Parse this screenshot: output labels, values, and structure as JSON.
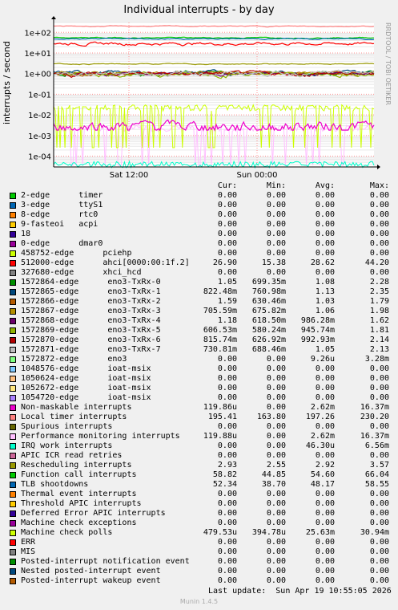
{
  "chart_data": {
    "type": "line",
    "title": "Individual interrupts - by day",
    "ylabel": "interrupts / second",
    "yscale": "log",
    "ylim": [
      3e-05,
      300
    ],
    "y_ticks": [
      "1e+02",
      "1e+01",
      "1e+00",
      "1e-01",
      "1e-02",
      "1e-03",
      "1e-04"
    ],
    "x_ticks": [
      "Sat 12:00",
      "Sun 00:00"
    ],
    "grid": true,
    "side_label": "RRDTOOL / TOBI OETIKER",
    "headers": [
      "Cur:",
      "Min:",
      "Avg:",
      "Max:"
    ],
    "series": [
      {
        "name": "2-edge      timer",
        "color": "#00cc00",
        "cur": "0.00",
        "min": "0.00",
        "avg": "0.00",
        "max": "0.00"
      },
      {
        "name": "3-edge      ttyS1",
        "color": "#0066b3",
        "cur": "0.00",
        "min": "0.00",
        "avg": "0.00",
        "max": "0.00"
      },
      {
        "name": "8-edge      rtc0",
        "color": "#ff8000",
        "cur": "0.00",
        "min": "0.00",
        "avg": "0.00",
        "max": "0.00"
      },
      {
        "name": "9-fasteoi   acpi",
        "color": "#ffcc00",
        "cur": "0.00",
        "min": "0.00",
        "avg": "0.00",
        "max": "0.00"
      },
      {
        "name": "18",
        "color": "#330099",
        "cur": "0.00",
        "min": "0.00",
        "avg": "0.00",
        "max": "0.00"
      },
      {
        "name": "0-edge      dmar0",
        "color": "#990099",
        "cur": "0.00",
        "min": "0.00",
        "avg": "0.00",
        "max": "0.00"
      },
      {
        "name": "458752-edge      pciehp",
        "color": "#ccff00",
        "cur": "0.00",
        "min": "0.00",
        "avg": "0.00",
        "max": "0.00"
      },
      {
        "name": "512000-edge      ahci[0000:00:1f.2]",
        "color": "#ff0000",
        "cur": "26.90",
        "min": "15.38",
        "avg": "28.62",
        "max": "44.20"
      },
      {
        "name": "327680-edge      xhci_hcd",
        "color": "#808080",
        "cur": "0.00",
        "min": "0.00",
        "avg": "0.00",
        "max": "0.00"
      },
      {
        "name": "1572864-edge      eno3-TxRx-0",
        "color": "#008f00",
        "cur": "1.05",
        "min": "699.35m",
        "avg": "1.08",
        "max": "2.28"
      },
      {
        "name": "1572865-edge      eno3-TxRx-1",
        "color": "#00487d",
        "cur": "822.48m",
        "min": "760.98m",
        "avg": "1.13",
        "max": "2.35"
      },
      {
        "name": "1572866-edge      eno3-TxRx-2",
        "color": "#b35a00",
        "cur": "1.59",
        "min": "630.46m",
        "avg": "1.03",
        "max": "1.79"
      },
      {
        "name": "1572867-edge      eno3-TxRx-3",
        "color": "#b38f00",
        "cur": "705.59m",
        "min": "675.82m",
        "avg": "1.06",
        "max": "1.98"
      },
      {
        "name": "1572868-edge      eno3-TxRx-4",
        "color": "#6b006b",
        "cur": "1.18",
        "min": "618.50m",
        "avg": "986.28m",
        "max": "1.62"
      },
      {
        "name": "1572869-edge      eno3-TxRx-5",
        "color": "#8fb300",
        "cur": "606.53m",
        "min": "580.24m",
        "avg": "945.74m",
        "max": "1.81"
      },
      {
        "name": "1572870-edge      eno3-TxRx-6",
        "color": "#b30000",
        "cur": "815.74m",
        "min": "626.92m",
        "avg": "992.93m",
        "max": "2.14"
      },
      {
        "name": "1572871-edge      eno3-TxRx-7",
        "color": "#bebebe",
        "cur": "730.81m",
        "min": "688.46m",
        "avg": "1.05",
        "max": "2.13"
      },
      {
        "name": "1572872-edge      eno3",
        "color": "#80ff80",
        "cur": "0.00",
        "min": "0.00",
        "avg": "9.26u",
        "max": "3.28m"
      },
      {
        "name": "1048576-edge      ioat-msix",
        "color": "#80c9ff",
        "cur": "0.00",
        "min": "0.00",
        "avg": "0.00",
        "max": "0.00"
      },
      {
        "name": "1050624-edge      ioat-msix",
        "color": "#ffc080",
        "cur": "0.00",
        "min": "0.00",
        "avg": "0.00",
        "max": "0.00"
      },
      {
        "name": "1052672-edge      ioat-msix",
        "color": "#ffe680",
        "cur": "0.00",
        "min": "0.00",
        "avg": "0.00",
        "max": "0.00"
      },
      {
        "name": "1054720-edge      ioat-msix",
        "color": "#aa80ff",
        "cur": "0.00",
        "min": "0.00",
        "avg": "0.00",
        "max": "0.00"
      },
      {
        "name": "Non-maskable interrupts",
        "color": "#ee00cc",
        "cur": "119.86u",
        "min": "0.00",
        "avg": "2.62m",
        "max": "16.37m"
      },
      {
        "name": "Local timer interrupts",
        "color": "#ff8080",
        "cur": "195.41",
        "min": "163.80",
        "avg": "197.26",
        "max": "230.20"
      },
      {
        "name": "Spurious interrupts",
        "color": "#666600",
        "cur": "0.00",
        "min": "0.00",
        "avg": "0.00",
        "max": "0.00"
      },
      {
        "name": "Performance monitoring interrupts",
        "color": "#ffbfff",
        "cur": "119.88u",
        "min": "0.00",
        "avg": "2.62m",
        "max": "16.37m"
      },
      {
        "name": "IRQ work interrupts",
        "color": "#00ffcc",
        "cur": "0.00",
        "min": "0.00",
        "avg": "46.30u",
        "max": "6.56m"
      },
      {
        "name": "APIC ICR read retries",
        "color": "#cc6699",
        "cur": "0.00",
        "min": "0.00",
        "avg": "0.00",
        "max": "0.00"
      },
      {
        "name": "Rescheduling interrupts",
        "color": "#999900",
        "cur": "2.93",
        "min": "2.55",
        "avg": "2.92",
        "max": "3.57"
      },
      {
        "name": "Function call interrupts",
        "color": "#00cc00",
        "cur": "58.82",
        "min": "44.85",
        "avg": "54.60",
        "max": "66.04"
      },
      {
        "name": "TLB shootdowns",
        "color": "#0066b3",
        "cur": "52.34",
        "min": "38.70",
        "avg": "48.17",
        "max": "58.55"
      },
      {
        "name": "Thermal event interrupts",
        "color": "#ff8000",
        "cur": "0.00",
        "min": "0.00",
        "avg": "0.00",
        "max": "0.00"
      },
      {
        "name": "Threshold APIC interrupts",
        "color": "#ffcc00",
        "cur": "0.00",
        "min": "0.00",
        "avg": "0.00",
        "max": "0.00"
      },
      {
        "name": "Deferred Error APIC interrupts",
        "color": "#330099",
        "cur": "0.00",
        "min": "0.00",
        "avg": "0.00",
        "max": "0.00"
      },
      {
        "name": "Machine check exceptions",
        "color": "#990099",
        "cur": "0.00",
        "min": "0.00",
        "avg": "0.00",
        "max": "0.00"
      },
      {
        "name": "Machine check polls",
        "color": "#ccff00",
        "cur": "479.53u",
        "min": "394.78u",
        "avg": "25.63m",
        "max": "30.94m"
      },
      {
        "name": "ERR",
        "color": "#ff0000",
        "cur": "0.00",
        "min": "0.00",
        "avg": "0.00",
        "max": "0.00"
      },
      {
        "name": "MIS",
        "color": "#808080",
        "cur": "0.00",
        "min": "0.00",
        "avg": "0.00",
        "max": "0.00"
      },
      {
        "name": "Posted-interrupt notification event",
        "color": "#008f00",
        "cur": "0.00",
        "min": "0.00",
        "avg": "0.00",
        "max": "0.00"
      },
      {
        "name": "Nested posted-interrupt event",
        "color": "#00487d",
        "cur": "0.00",
        "min": "0.00",
        "avg": "0.00",
        "max": "0.00"
      },
      {
        "name": "Posted-interrupt wakeup event",
        "color": "#b35a00",
        "cur": "0.00",
        "min": "0.00",
        "avg": "0.00",
        "max": "0.00"
      }
    ]
  },
  "footer": {
    "last_update": "Last update:  Sun Apr 19 10:55:05 2026",
    "version": "Munin 1.4.5"
  }
}
